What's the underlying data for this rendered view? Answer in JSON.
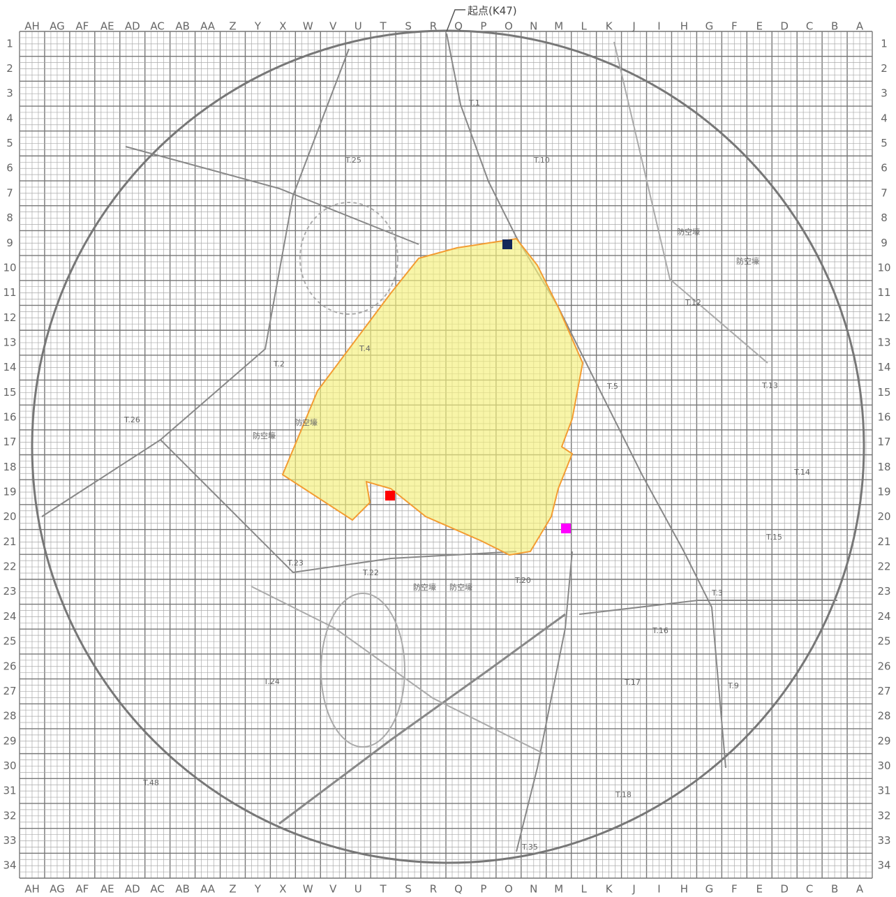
{
  "header": {
    "start_point": "起点(K47)"
  },
  "columns": [
    "AH",
    "AG",
    "AF",
    "AE",
    "AD",
    "AC",
    "AB",
    "AA",
    "Z",
    "Y",
    "X",
    "W",
    "V",
    "U",
    "T",
    "S",
    "R",
    "Q",
    "P",
    "O",
    "N",
    "M",
    "L",
    "K",
    "J",
    "I",
    "H",
    "G",
    "F",
    "E",
    "D",
    "C",
    "B",
    "A"
  ],
  "rows": [
    "1",
    "2",
    "3",
    "4",
    "5",
    "6",
    "7",
    "8",
    "9",
    "10",
    "11",
    "12",
    "13",
    "14",
    "15",
    "16",
    "17",
    "18",
    "19",
    "20",
    "21",
    "22",
    "23",
    "24",
    "25",
    "26",
    "27",
    "28",
    "29",
    "30",
    "31",
    "32",
    "33",
    "34"
  ],
  "labels": [
    "T.1",
    "T.10",
    "T.25",
    "T.12",
    "T.2",
    "T.5",
    "T.13",
    "T.26",
    "T.14",
    "T.15",
    "T.23",
    "T.22",
    "T.20",
    "T.3",
    "T.16",
    "T.24",
    "T.17",
    "T.9",
    "T.48",
    "T.18",
    "T.35",
    "T.4",
    "防空壕",
    "防空壕",
    "防空壕",
    "防空壕",
    "防空壕",
    "防空壕"
  ]
}
